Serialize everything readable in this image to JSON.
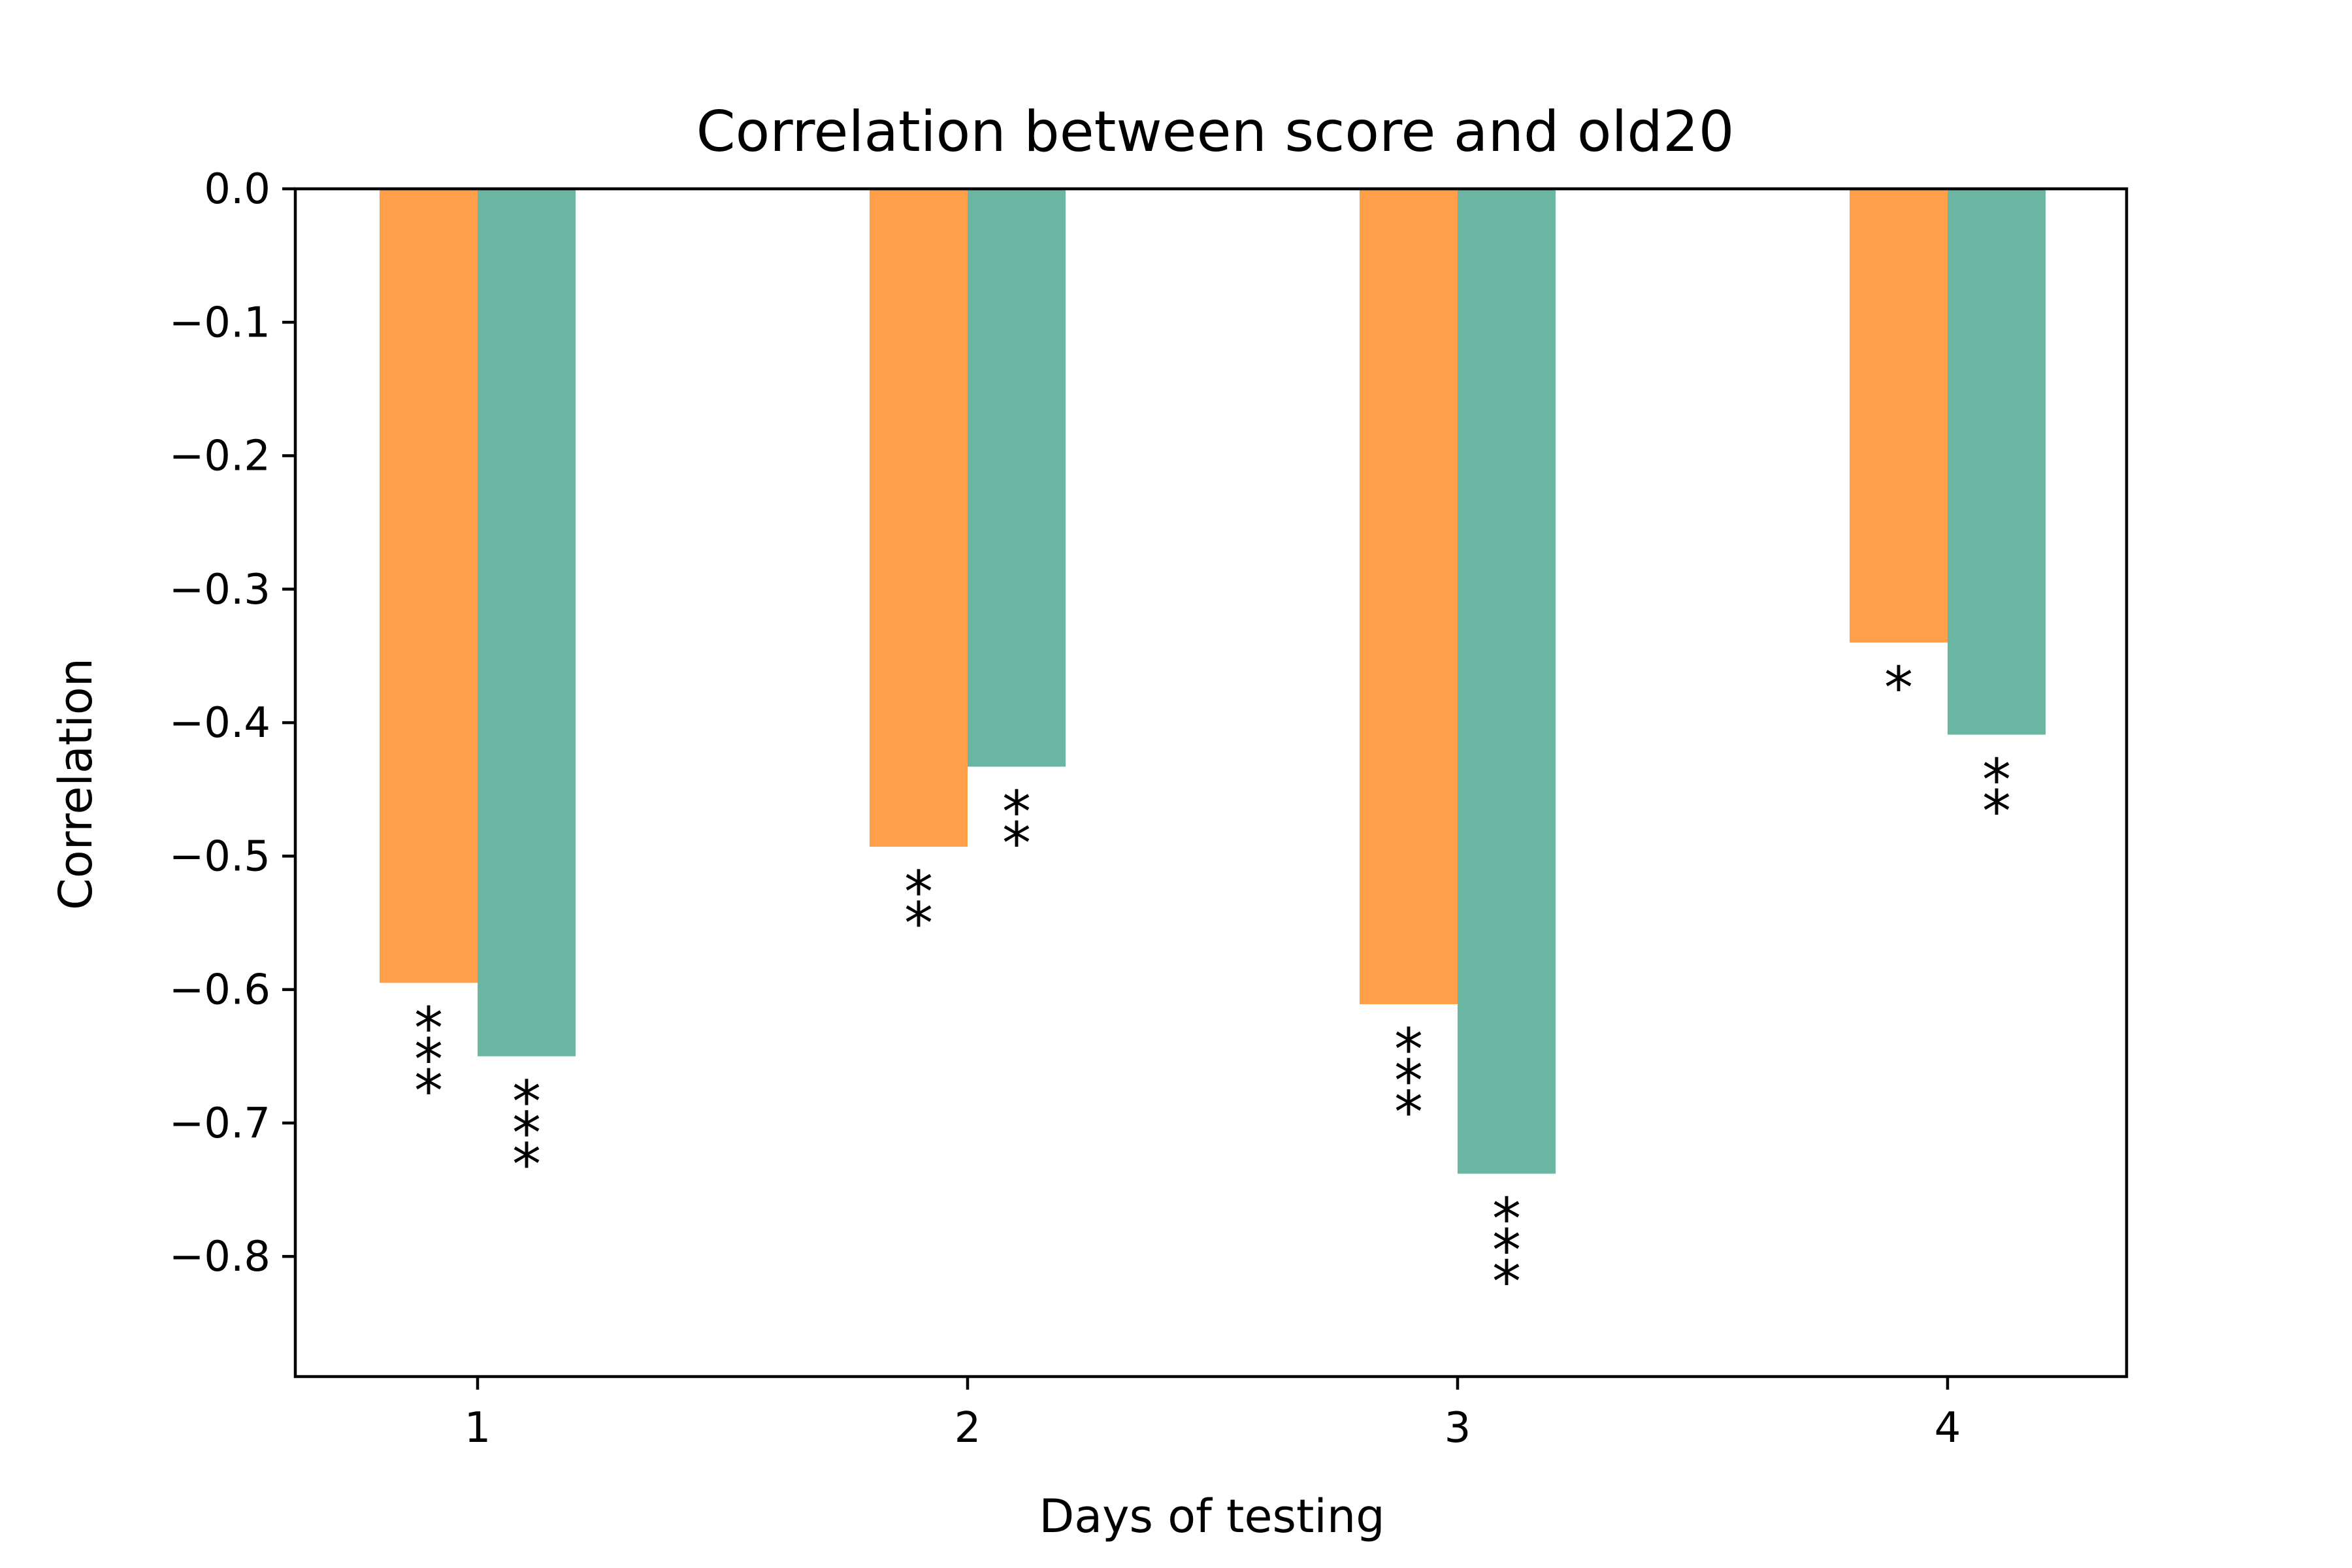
{
  "chart_data": {
    "type": "bar",
    "title": "Correlation between score and old20",
    "xlabel": "Days of testing",
    "ylabel": "Correlation",
    "categories": [
      "1",
      "2",
      "3",
      "4"
    ],
    "ylim": [
      -0.89,
      0.0
    ],
    "yticks": [
      {
        "value": 0.0,
        "label": "0.0"
      },
      {
        "value": -0.1,
        "label": "−0.1"
      },
      {
        "value": -0.2,
        "label": "−0.2"
      },
      {
        "value": -0.3,
        "label": "−0.3"
      },
      {
        "value": -0.4,
        "label": "−0.4"
      },
      {
        "value": -0.5,
        "label": "−0.5"
      },
      {
        "value": -0.6,
        "label": "−0.6"
      },
      {
        "value": -0.7,
        "label": "−0.7"
      },
      {
        "value": -0.8,
        "label": "−0.8"
      }
    ],
    "series": [
      {
        "color": "#ff9f4a",
        "values": [
          -0.595,
          -0.493,
          -0.611,
          -0.34
        ],
        "significance": [
          "***",
          "**",
          "***",
          "*"
        ]
      },
      {
        "color": "#6ab6a2",
        "values": [
          -0.65,
          -0.433,
          -0.738,
          -0.409
        ],
        "significance": [
          "***",
          "**",
          "***",
          "**"
        ]
      }
    ],
    "grid": false,
    "legend": null
  }
}
